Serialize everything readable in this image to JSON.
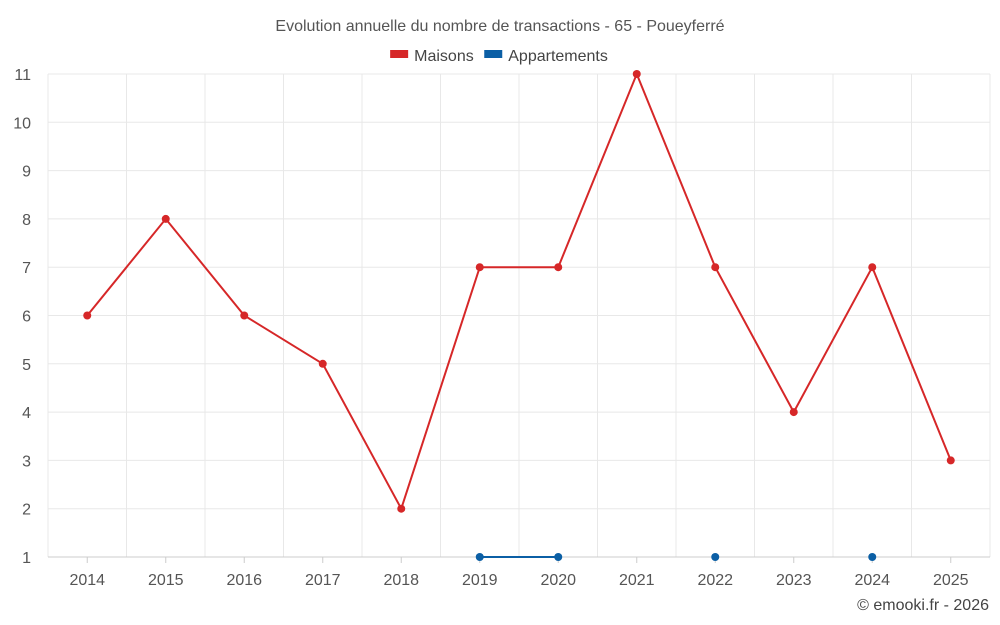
{
  "chart_data": {
    "type": "line",
    "title": "Evolution annuelle du nombre de transactions - 65 - Poueyferré",
    "categories": [
      "2014",
      "2015",
      "2016",
      "2017",
      "2018",
      "2019",
      "2020",
      "2021",
      "2022",
      "2023",
      "2024",
      "2025"
    ],
    "series": [
      {
        "name": "Maisons",
        "color": "#d62728",
        "values": [
          6,
          8,
          6,
          5,
          2,
          7,
          7,
          11,
          7,
          4,
          7,
          3
        ]
      },
      {
        "name": "Appartements",
        "color": "#0b5fa5",
        "values": [
          null,
          null,
          null,
          null,
          null,
          1,
          1,
          null,
          1,
          null,
          1,
          null
        ]
      }
    ],
    "ylim": [
      1,
      11
    ],
    "yticks": [
      1,
      2,
      3,
      4,
      5,
      6,
      7,
      8,
      9,
      10,
      11
    ],
    "xlabel": "",
    "ylabel": "",
    "grid": true,
    "legend": "top-center"
  },
  "credit": "© emooki.fr - 2026"
}
